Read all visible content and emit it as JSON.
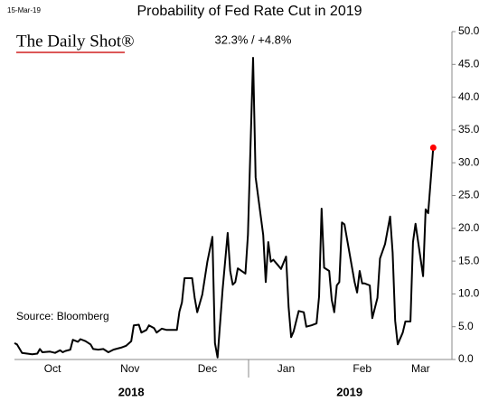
{
  "chart_data": {
    "type": "line",
    "title": "Probability of Fed Rate Cut in 2019",
    "date_stamp": "15-Mar-19",
    "brand": "The Daily Shot®",
    "source": "Source: Bloomberg",
    "annotation": "32.3%  /  +4.8%",
    "x": [
      0,
      1,
      3,
      7,
      9,
      10,
      11,
      14,
      16,
      18,
      19,
      20,
      22,
      23,
      25,
      26,
      28,
      30,
      31,
      33,
      35,
      37,
      39,
      42,
      44,
      46,
      47,
      49,
      50,
      52,
      53,
      55,
      56,
      57,
      58,
      60,
      64,
      65,
      66,
      67,
      70,
      71,
      72,
      74,
      76,
      78,
      79,
      80,
      82,
      84,
      85,
      86,
      87,
      88,
      91,
      92,
      94,
      95,
      98,
      99,
      100,
      101,
      102,
      104,
      105,
      107,
      108,
      109,
      110,
      112,
      114,
      115,
      117,
      119,
      120,
      121,
      122,
      124,
      125,
      126,
      127,
      128,
      129,
      130,
      133,
      134,
      135,
      136,
      137,
      138,
      140,
      141,
      143,
      144,
      146,
      148,
      149,
      150,
      151,
      153,
      154,
      156,
      157,
      158,
      161,
      162,
      163,
      165
    ],
    "values": [
      2.5,
      2.3,
      1.0,
      0.8,
      0.9,
      1.6,
      1.1,
      1.2,
      1.0,
      1.4,
      1.1,
      1.3,
      1.5,
      3.0,
      2.7,
      3.1,
      2.8,
      2.3,
      1.6,
      1.5,
      1.6,
      1.1,
      1.5,
      1.8,
      2.1,
      2.8,
      5.2,
      5.3,
      4.1,
      4.5,
      5.2,
      4.8,
      4.1,
      4.4,
      4.7,
      4.5,
      4.5,
      7.3,
      8.7,
      12.4,
      12.4,
      9.4,
      7.2,
      9.9,
      14.9,
      18.7,
      2.5,
      0.3,
      10.7,
      19.3,
      13.5,
      11.4,
      11.8,
      13.9,
      13.1,
      19.0,
      46.0,
      27.8,
      19.0,
      11.8,
      17.9,
      14.9,
      15.2,
      14.3,
      13.8,
      15.7,
      8.0,
      3.4,
      4.3,
      7.4,
      7.2,
      5.0,
      5.2,
      5.5,
      9.6,
      23.0,
      14.0,
      13.5,
      9.1,
      7.2,
      11.3,
      11.8,
      20.9,
      20.6,
      14.0,
      11.8,
      10.2,
      13.5,
      11.6,
      11.6,
      11.3,
      6.3,
      9.4,
      15.4,
      17.6,
      21.8,
      16.3,
      5.9,
      2.3,
      4.1,
      5.8,
      5.8,
      17.9,
      20.7,
      12.7,
      22.9,
      22.3,
      32.3
    ],
    "color": "#000000",
    "last_point_color": "#ff0000",
    "xlim": [
      0,
      172
    ],
    "xticks": [
      {
        "value": 15,
        "label": "Oct"
      },
      {
        "value": 45.5,
        "label": "Nov"
      },
      {
        "value": 76,
        "label": "Dec"
      },
      {
        "value": 107,
        "label": "Jan"
      },
      {
        "value": 137,
        "label": "Feb"
      },
      {
        "value": 160,
        "label": "Mar"
      }
    ],
    "x_groups": [
      {
        "value": 46,
        "label": "2018"
      },
      {
        "value": 132,
        "label": "2019"
      }
    ],
    "ylim": [
      0,
      50
    ],
    "yticks": [
      {
        "value": 0,
        "label": "0.0"
      },
      {
        "value": 5,
        "label": "5.0"
      },
      {
        "value": 10,
        "label": "10.0"
      },
      {
        "value": 15,
        "label": "15.0"
      },
      {
        "value": 20,
        "label": "20.0"
      },
      {
        "value": 25,
        "label": "25.0"
      },
      {
        "value": 30,
        "label": "30.0"
      },
      {
        "value": 35,
        "label": "35.0"
      },
      {
        "value": 40,
        "label": "40.0"
      },
      {
        "value": 45,
        "label": "45.0"
      },
      {
        "value": 50,
        "label": "50.0"
      }
    ],
    "y_axis_side": "right",
    "grid": false
  }
}
